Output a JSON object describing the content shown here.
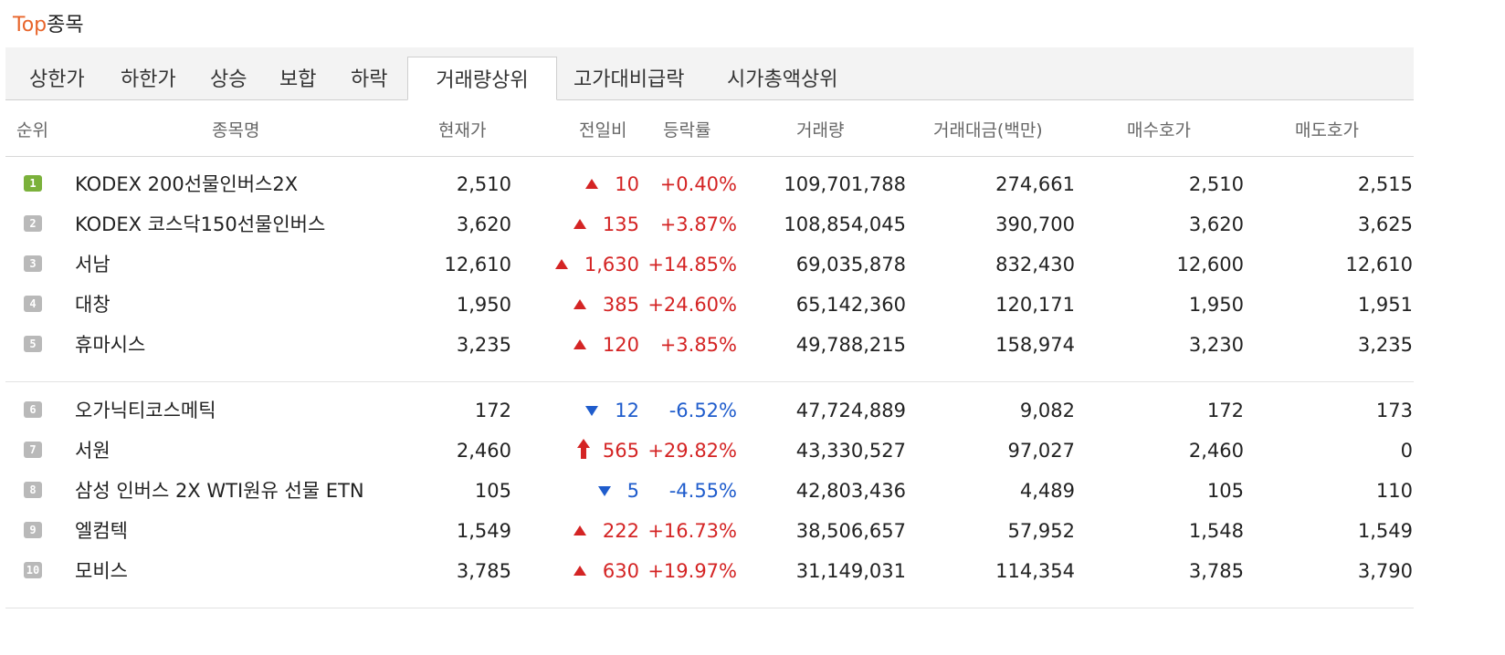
{
  "widget": {
    "title_highlight": "Top",
    "title_rest": "종목"
  },
  "tabs": [
    {
      "label": "상한가",
      "active": false
    },
    {
      "label": "하한가",
      "active": false
    },
    {
      "label": "상승",
      "active": false
    },
    {
      "label": "보합",
      "active": false
    },
    {
      "label": "하락",
      "active": false
    },
    {
      "label": "거래량상위",
      "active": true
    },
    {
      "label": "고가대비급락",
      "active": false
    },
    {
      "label": "시가총액상위",
      "active": false
    }
  ],
  "columns": {
    "rank": "순위",
    "name": "종목명",
    "price": "현재가",
    "change": "전일비",
    "rate": "등락률",
    "volume": "거래량",
    "amount": "거래대금(백만)",
    "bid": "매수호가",
    "ask": "매도호가"
  },
  "colors": {
    "title_accent": "#e8652b",
    "up": "#d42424",
    "down": "#1f5ccc",
    "rank_first": "#7bb13b",
    "rank_other": "#b9b9b9"
  },
  "rows": [
    {
      "rank": "1",
      "name": "KODEX 200선물인버스2X",
      "price": "2,510",
      "direction": "up",
      "change": "10",
      "rate": "+0.40%",
      "volume": "109,701,788",
      "amount": "274,661",
      "bid": "2,510",
      "ask": "2,515"
    },
    {
      "rank": "2",
      "name": "KODEX 코스닥150선물인버스",
      "price": "3,620",
      "direction": "up",
      "change": "135",
      "rate": "+3.87%",
      "volume": "108,854,045",
      "amount": "390,700",
      "bid": "3,620",
      "ask": "3,625"
    },
    {
      "rank": "3",
      "name": "서남",
      "price": "12,610",
      "direction": "up",
      "change": "1,630",
      "rate": "+14.85%",
      "volume": "69,035,878",
      "amount": "832,430",
      "bid": "12,600",
      "ask": "12,610"
    },
    {
      "rank": "4",
      "name": "대창",
      "price": "1,950",
      "direction": "up",
      "change": "385",
      "rate": "+24.60%",
      "volume": "65,142,360",
      "amount": "120,171",
      "bid": "1,950",
      "ask": "1,951"
    },
    {
      "rank": "5",
      "name": "휴마시스",
      "price": "3,235",
      "direction": "up",
      "change": "120",
      "rate": "+3.85%",
      "volume": "49,788,215",
      "amount": "158,974",
      "bid": "3,230",
      "ask": "3,235"
    },
    {
      "rank": "6",
      "name": "오가닉티코스메틱",
      "price": "172",
      "direction": "down",
      "change": "12",
      "rate": "-6.52%",
      "volume": "47,724,889",
      "amount": "9,082",
      "bid": "172",
      "ask": "173"
    },
    {
      "rank": "7",
      "name": "서원",
      "price": "2,460",
      "direction": "limit-up",
      "change": "565",
      "rate": "+29.82%",
      "volume": "43,330,527",
      "amount": "97,027",
      "bid": "2,460",
      "ask": "0"
    },
    {
      "rank": "8",
      "name": "삼성 인버스 2X WTI원유 선물 ETN",
      "price": "105",
      "direction": "down",
      "change": "5",
      "rate": "-4.55%",
      "volume": "42,803,436",
      "amount": "4,489",
      "bid": "105",
      "ask": "110"
    },
    {
      "rank": "9",
      "name": "엘컴텍",
      "price": "1,549",
      "direction": "up",
      "change": "222",
      "rate": "+16.73%",
      "volume": "38,506,657",
      "amount": "57,952",
      "bid": "1,548",
      "ask": "1,549"
    },
    {
      "rank": "10",
      "name": "모비스",
      "price": "3,785",
      "direction": "up",
      "change": "630",
      "rate": "+19.97%",
      "volume": "31,149,031",
      "amount": "114,354",
      "bid": "3,785",
      "ask": "3,790"
    }
  ]
}
